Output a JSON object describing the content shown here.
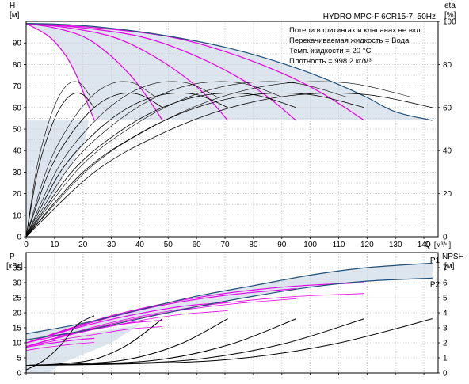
{
  "chart_data": [
    {
      "type": "line",
      "panel": "head-efficiency",
      "title": "HYDRO MPC-F 6CR15-7, 50Hz",
      "notes": [
        "Потери в фитингах и клапанах не вкл.",
        "Перекачиваемая жидкость = Вода",
        "Темп. жидкости = 20 °C",
        "Плотность = 998.2 кг/м³"
      ],
      "ylabel": "H",
      "yunit": "[м]",
      "ylabel_right": "eta",
      "yunit_right": "[%]",
      "xlabel": "Q",
      "xunit": "[м³/ч]",
      "xlim": [
        0,
        145
      ],
      "ylim": [
        0,
        100
      ],
      "ylim_right": [
        0,
        100
      ],
      "xticks": [
        0,
        10,
        20,
        30,
        40,
        50,
        60,
        70,
        80,
        90,
        100,
        110,
        120,
        130,
        140
      ],
      "yticks": [
        0,
        5,
        10,
        15,
        20,
        25,
        30,
        35,
        40,
        45,
        50,
        55,
        60,
        65,
        70,
        75,
        80,
        85,
        90,
        95
      ],
      "yticks_labeled": [
        0,
        10,
        20,
        30,
        40,
        50,
        60,
        70,
        80,
        90
      ],
      "yticks_right": [
        0,
        20,
        40,
        60,
        80,
        100
      ],
      "grid": true,
      "colors": {
        "envelope": "#dde5ee",
        "max_curve": "#1f4e78",
        "pump_curves": "#e600e6",
        "efficiency": "#000000"
      },
      "head_max_curve": {
        "x": [
          0,
          10,
          20,
          30,
          40,
          50,
          60,
          70,
          80,
          90,
          100,
          110,
          120,
          130,
          143
        ],
        "y": [
          99,
          98.8,
          98,
          96.8,
          95.2,
          93.2,
          90.8,
          88,
          84.6,
          80.6,
          76,
          70.7,
          64.7,
          58,
          54
        ]
      },
      "head_curves_n_pumps": [
        {
          "n": 1,
          "x": [
            0,
            8,
            14,
            18,
            21,
            24
          ],
          "y": [
            99,
            93,
            84,
            74,
            64,
            54
          ]
        },
        {
          "n": 2,
          "x": [
            0,
            10,
            20,
            28,
            36,
            42,
            48
          ],
          "y": [
            99,
            97,
            93,
            86,
            76,
            66,
            54
          ]
        },
        {
          "n": 3,
          "x": [
            0,
            15,
            30,
            42,
            54,
            63,
            71
          ],
          "y": [
            99,
            97,
            93,
            86,
            76,
            66,
            54
          ]
        },
        {
          "n": 4,
          "x": [
            0,
            20,
            40,
            56,
            72,
            84,
            95
          ],
          "y": [
            99,
            97,
            93,
            86,
            76,
            66,
            54
          ]
        },
        {
          "n": 5,
          "x": [
            0,
            25,
            50,
            70,
            90,
            105,
            119
          ],
          "y": [
            99,
            97,
            93,
            86,
            76,
            66,
            54
          ]
        }
      ],
      "efficiency_curves_pct": [
        {
          "n": 1,
          "x": [
            0,
            4,
            8,
            12,
            16,
            20,
            24
          ],
          "y": [
            0,
            30,
            48,
            60,
            66,
            66,
            60
          ]
        },
        {
          "n": 2,
          "x": [
            0,
            8,
            16,
            24,
            32,
            40,
            48
          ],
          "y": [
            0,
            30,
            48,
            60,
            66,
            66,
            60
          ]
        },
        {
          "n": 3,
          "x": [
            0,
            12,
            24,
            36,
            48,
            60,
            71
          ],
          "y": [
            0,
            30,
            48,
            60,
            66,
            66,
            60
          ]
        },
        {
          "n": 4,
          "x": [
            0,
            16,
            32,
            48,
            64,
            80,
            95
          ],
          "y": [
            0,
            30,
            48,
            60,
            66,
            66,
            60
          ]
        },
        {
          "n": 5,
          "x": [
            0,
            20,
            40,
            60,
            80,
            100,
            119
          ],
          "y": [
            0,
            30,
            48,
            60,
            66,
            66,
            60
          ]
        },
        {
          "n": 6,
          "x": [
            0,
            24,
            48,
            72,
            96,
            120,
            143
          ],
          "y": [
            0,
            30,
            48,
            60,
            66,
            66,
            60
          ]
        }
      ]
    },
    {
      "type": "line",
      "panel": "power-npsh",
      "ylabel": "P",
      "yunit": "[кВт]",
      "ylabel_right": "NPSH",
      "yunit_right": "[м]",
      "xlim": [
        0,
        145
      ],
      "ylim": [
        0,
        40
      ],
      "ylim_right": [
        0,
        8
      ],
      "yticks": [
        0,
        5,
        10,
        15,
        20,
        25,
        30,
        35
      ],
      "yticks_right": [
        0,
        1,
        2,
        3,
        4,
        5,
        6,
        7
      ],
      "grid": true,
      "labels": [
        "P1",
        "P2"
      ],
      "power_envelope_P1": {
        "x": [
          0,
          20,
          40,
          60,
          80,
          100,
          120,
          143
        ],
        "y": [
          13,
          16.5,
          21,
          25.5,
          29,
          32.5,
          35,
          36.5
        ]
      },
      "power_envelope_P2": {
        "x": [
          0,
          20,
          40,
          60,
          80,
          100,
          120,
          143
        ],
        "y": [
          11,
          14,
          18,
          22,
          25.5,
          28.5,
          30.5,
          31.5
        ]
      },
      "power_curves_n_pumps": [
        {
          "n": 1,
          "x": [
            0,
            6,
            12,
            18,
            24
          ],
          "y": [
            8.5,
            9.5,
            10.3,
            11,
            11.5
          ]
        },
        {
          "n": 2,
          "x": [
            0,
            12,
            24,
            36,
            48
          ],
          "y": [
            10,
            12.5,
            14.5,
            16.5,
            17.5
          ]
        },
        {
          "n": 3,
          "x": [
            0,
            18,
            36,
            54,
            71
          ],
          "y": [
            10,
            15,
            19,
            22,
            23.5
          ]
        },
        {
          "n": 4,
          "x": [
            0,
            24,
            48,
            72,
            95
          ],
          "y": [
            10,
            17,
            22.5,
            26,
            28
          ]
        },
        {
          "n": 5,
          "x": [
            0,
            30,
            60,
            90,
            119
          ],
          "y": [
            10,
            19,
            25,
            28.5,
            30
          ]
        }
      ],
      "npsh_curves_m": [
        {
          "n": 1,
          "x": [
            0,
            6,
            12,
            18,
            24
          ],
          "y": [
            0.2,
            0.8,
            1.8,
            3.2,
            3.8
          ]
        },
        {
          "n": 2,
          "x": [
            0,
            12,
            24,
            36,
            48
          ],
          "y": [
            0.5,
            0.6,
            0.9,
            1.9,
            3.6
          ]
        },
        {
          "n": 3,
          "x": [
            0,
            18,
            36,
            54,
            71
          ],
          "y": [
            0.5,
            0.6,
            0.9,
            1.9,
            3.6
          ]
        },
        {
          "n": 4,
          "x": [
            0,
            24,
            48,
            72,
            95
          ],
          "y": [
            0.5,
            0.6,
            0.9,
            1.9,
            3.6
          ]
        },
        {
          "n": 5,
          "x": [
            0,
            30,
            60,
            90,
            119
          ],
          "y": [
            0.5,
            0.6,
            0.9,
            1.9,
            3.6
          ]
        },
        {
          "n": 6,
          "x": [
            0,
            36,
            72,
            108,
            143
          ],
          "y": [
            0.5,
            0.6,
            0.9,
            1.9,
            3.6
          ]
        }
      ]
    }
  ]
}
